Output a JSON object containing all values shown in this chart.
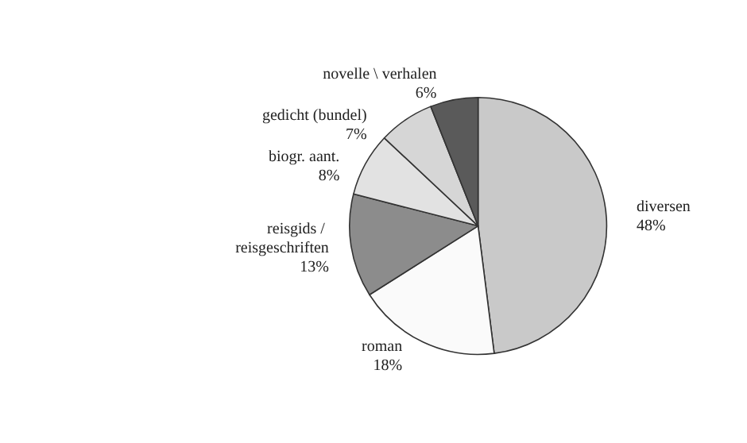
{
  "chart_data": {
    "type": "pie",
    "categories": [
      "diversen",
      "roman",
      "reisgids / reisgeschriften",
      "biogr. aant.",
      "gedicht (bundel)",
      "novelle \\ verhalen"
    ],
    "values": [
      48,
      18,
      13,
      8,
      7,
      6
    ],
    "colors": [
      "#c9c9c9",
      "#fafafa",
      "#8c8c8c",
      "#e2e2e2",
      "#d6d6d6",
      "#5a5a5a"
    ],
    "value_labels": [
      "48%",
      "18%",
      "13%",
      "8%",
      "7%",
      "6%"
    ],
    "legend": false
  }
}
